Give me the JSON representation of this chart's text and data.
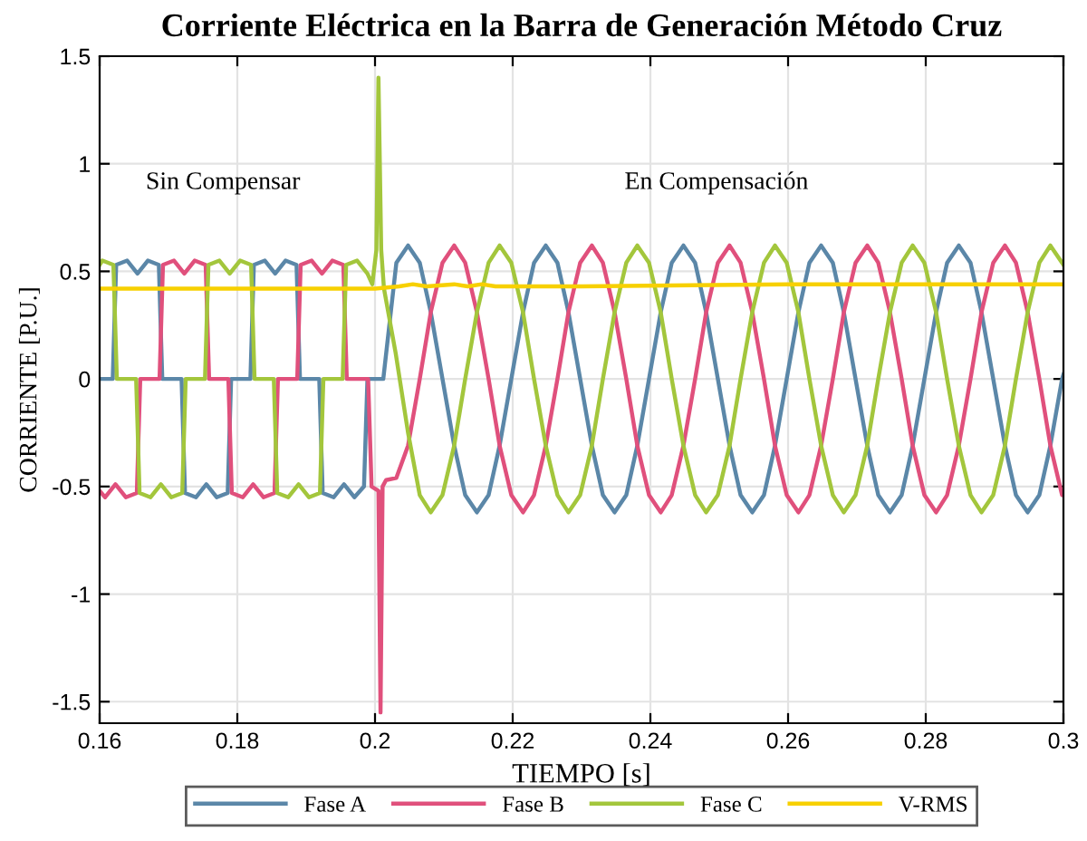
{
  "chart_data": {
    "type": "line",
    "title": "Corriente Eléctrica en la Barra de Generación Método Cruz",
    "xlabel": "TIEMPO [s]",
    "ylabel": "CORRIENTE [P.U.]",
    "annotations": [
      "Sin Compensar",
      "En Compensación"
    ],
    "xlim": [
      0.16,
      0.3
    ],
    "xticks": [
      0.16,
      0.18,
      0.2,
      0.22,
      0.24,
      0.26,
      0.28,
      0.3
    ],
    "ylim": [
      -1.6,
      1.5
    ],
    "yticks": [
      -1.5,
      -1,
      -0.5,
      0,
      0.5,
      1,
      1.5
    ],
    "grid": true,
    "legend": "bottom",
    "marker": "none",
    "line_style": "solid",
    "series": [
      {
        "name": "Fase A",
        "color": "#5b87a8",
        "x": [
          0.16,
          0.1619,
          0.1624,
          0.164,
          0.1655,
          0.167,
          0.1686,
          0.1691,
          0.1719,
          0.1724,
          0.174,
          0.1755,
          0.177,
          0.1786,
          0.1791,
          0.1819,
          0.1824,
          0.184,
          0.1855,
          0.187,
          0.1886,
          0.1891,
          0.1919,
          0.1924,
          0.194,
          0.1955,
          0.197,
          0.1984,
          0.1989,
          0.2012,
          0.2031,
          0.2048,
          0.2065,
          0.2081,
          0.2098,
          0.2115,
          0.2131,
          0.2148,
          0.2165,
          0.2181,
          0.2198,
          0.2215,
          0.2231,
          0.2248,
          0.2265,
          0.2281,
          0.2298,
          0.2315,
          0.2331,
          0.2348,
          0.2365,
          0.2381,
          0.2398,
          0.2415,
          0.2431,
          0.2448,
          0.2465,
          0.2481,
          0.2498,
          0.2515,
          0.2531,
          0.2548,
          0.2565,
          0.2581,
          0.2598,
          0.2615,
          0.2631,
          0.2648,
          0.2665,
          0.2681,
          0.2698,
          0.2715,
          0.2731,
          0.2748,
          0.2765,
          0.2781,
          0.2798,
          0.2815,
          0.2831,
          0.2848,
          0.2865,
          0.2881,
          0.2898,
          0.2915,
          0.2931,
          0.2948,
          0.2965,
          0.2981,
          0.2998,
          0.3
        ],
        "values": [
          0,
          0,
          0.53,
          0.55,
          0.49,
          0.55,
          0.53,
          0,
          0,
          -0.53,
          -0.55,
          -0.49,
          -0.55,
          -0.53,
          0,
          0,
          0.53,
          0.55,
          0.49,
          0.55,
          0.53,
          0,
          0,
          -0.53,
          -0.55,
          -0.49,
          -0.55,
          -0.5,
          0,
          0,
          0.54,
          0.62,
          0.54,
          0.31,
          0,
          -0.31,
          -0.54,
          -0.62,
          -0.54,
          -0.31,
          0,
          0.31,
          0.54,
          0.62,
          0.54,
          0.31,
          0,
          -0.31,
          -0.54,
          -0.62,
          -0.54,
          -0.31,
          0,
          0.31,
          0.54,
          0.62,
          0.54,
          0.31,
          0,
          -0.31,
          -0.54,
          -0.62,
          -0.54,
          -0.31,
          0,
          0.31,
          0.54,
          0.62,
          0.54,
          0.31,
          0,
          -0.31,
          -0.54,
          -0.62,
          -0.54,
          -0.31,
          0,
          0.31,
          0.54,
          0.62,
          0.54,
          0.31,
          0,
          -0.31,
          -0.54,
          -0.62,
          -0.54,
          -0.31,
          0,
          0.02
        ]
      },
      {
        "name": "Fase B",
        "color": "#e0507c",
        "x": [
          0.16,
          0.1608,
          0.1623,
          0.1638,
          0.1654,
          0.1659,
          0.1687,
          0.1692,
          0.1708,
          0.1723,
          0.1738,
          0.1754,
          0.1759,
          0.1787,
          0.1792,
          0.1808,
          0.1823,
          0.1838,
          0.1854,
          0.1859,
          0.1887,
          0.1892,
          0.1908,
          0.1923,
          0.1938,
          0.1954,
          0.1959,
          0.199,
          0.1995,
          0.2005,
          0.2008,
          0.2011,
          0.2016,
          0.2031,
          0.2048,
          0.2065,
          0.2081,
          0.2098,
          0.2115,
          0.2131,
          0.2148,
          0.2165,
          0.2181,
          0.2198,
          0.2215,
          0.2231,
          0.2248,
          0.2265,
          0.2281,
          0.2298,
          0.2315,
          0.2331,
          0.2348,
          0.2365,
          0.2381,
          0.2398,
          0.2415,
          0.2431,
          0.2448,
          0.2465,
          0.2481,
          0.2498,
          0.2515,
          0.2531,
          0.2548,
          0.2565,
          0.2581,
          0.2598,
          0.2615,
          0.2631,
          0.2648,
          0.2665,
          0.2681,
          0.2698,
          0.2715,
          0.2731,
          0.2748,
          0.2765,
          0.2781,
          0.2798,
          0.2815,
          0.2831,
          0.2848,
          0.2865,
          0.2881,
          0.2898,
          0.2915,
          0.2931,
          0.2948,
          0.2965,
          0.2981,
          0.2998,
          0.3
        ],
        "values": [
          -0.52,
          -0.55,
          -0.49,
          -0.55,
          -0.53,
          0,
          0,
          0.53,
          0.55,
          0.49,
          0.55,
          0.53,
          0,
          0,
          -0.53,
          -0.55,
          -0.49,
          -0.55,
          -0.53,
          0,
          0,
          0.53,
          0.55,
          0.49,
          0.55,
          0.53,
          0,
          0,
          -0.5,
          -0.52,
          -1.55,
          -0.5,
          -0.47,
          -0.46,
          -0.31,
          0,
          0.31,
          0.54,
          0.62,
          0.54,
          0.31,
          0,
          -0.31,
          -0.54,
          -0.62,
          -0.54,
          -0.31,
          0,
          0.31,
          0.54,
          0.62,
          0.54,
          0.31,
          0,
          -0.31,
          -0.54,
          -0.62,
          -0.54,
          -0.31,
          0,
          0.31,
          0.54,
          0.62,
          0.54,
          0.31,
          0,
          -0.31,
          -0.54,
          -0.62,
          -0.54,
          -0.31,
          0,
          0.31,
          0.54,
          0.62,
          0.54,
          0.31,
          0,
          -0.31,
          -0.54,
          -0.62,
          -0.54,
          -0.31,
          0,
          0.31,
          0.54,
          0.62,
          0.54,
          0.31,
          0,
          -0.31,
          -0.54,
          -0.53
        ]
      },
      {
        "name": "Fase C",
        "color": "#a3c63c",
        "x": [
          0.16,
          0.1604,
          0.162,
          0.1625,
          0.1653,
          0.1658,
          0.1674,
          0.1689,
          0.1704,
          0.172,
          0.1725,
          0.1753,
          0.1758,
          0.1774,
          0.1789,
          0.1804,
          0.182,
          0.1825,
          0.1853,
          0.1858,
          0.1874,
          0.1889,
          0.1904,
          0.192,
          0.1925,
          0.1953,
          0.1958,
          0.1974,
          0.1989,
          0.1996,
          0.2002,
          0.2005,
          0.2009,
          0.2013,
          0.203,
          0.2048,
          0.2065,
          0.2081,
          0.2098,
          0.2115,
          0.2131,
          0.2148,
          0.2165,
          0.2181,
          0.2198,
          0.2215,
          0.2231,
          0.2248,
          0.2265,
          0.2281,
          0.2298,
          0.2315,
          0.2331,
          0.2348,
          0.2365,
          0.2381,
          0.2398,
          0.2415,
          0.2431,
          0.2448,
          0.2465,
          0.2481,
          0.2498,
          0.2515,
          0.2531,
          0.2548,
          0.2565,
          0.2581,
          0.2598,
          0.2615,
          0.2631,
          0.2648,
          0.2665,
          0.2681,
          0.2698,
          0.2715,
          0.2731,
          0.2748,
          0.2765,
          0.2781,
          0.2798,
          0.2815,
          0.2831,
          0.2848,
          0.2865,
          0.2881,
          0.2898,
          0.2915,
          0.2931,
          0.2948,
          0.2965,
          0.2981,
          0.2998,
          0.3
        ],
        "values": [
          0.53,
          0.55,
          0.53,
          0,
          0,
          -0.53,
          -0.55,
          -0.49,
          -0.55,
          -0.53,
          0,
          0,
          0.53,
          0.55,
          0.49,
          0.55,
          0.53,
          0,
          0,
          -0.53,
          -0.55,
          -0.49,
          -0.55,
          -0.53,
          0,
          0,
          0.53,
          0.55,
          0.49,
          0.44,
          0.6,
          1.4,
          0.6,
          0.42,
          0.12,
          -0.25,
          -0.54,
          -0.62,
          -0.54,
          -0.31,
          0,
          0.31,
          0.54,
          0.62,
          0.54,
          0.31,
          0,
          -0.31,
          -0.54,
          -0.62,
          -0.54,
          -0.31,
          0,
          0.31,
          0.54,
          0.62,
          0.54,
          0.31,
          0,
          -0.31,
          -0.54,
          -0.62,
          -0.54,
          -0.31,
          0,
          0.31,
          0.54,
          0.62,
          0.54,
          0.31,
          0,
          -0.31,
          -0.54,
          -0.62,
          -0.54,
          -0.31,
          0,
          0.31,
          0.54,
          0.62,
          0.54,
          0.31,
          0,
          -0.31,
          -0.54,
          -0.62,
          -0.54,
          -0.31,
          0,
          0.31,
          0.54,
          0.62,
          0.54,
          0.53
        ]
      },
      {
        "name": "V-RMS",
        "color": "#f7d000",
        "x": [
          0.16,
          0.2,
          0.2035,
          0.2055,
          0.2075,
          0.2115,
          0.2135,
          0.2155,
          0.2175,
          0.23,
          0.26,
          0.3
        ],
        "values": [
          0.42,
          0.42,
          0.43,
          0.44,
          0.43,
          0.44,
          0.43,
          0.44,
          0.43,
          0.43,
          0.44,
          0.44
        ]
      }
    ]
  }
}
